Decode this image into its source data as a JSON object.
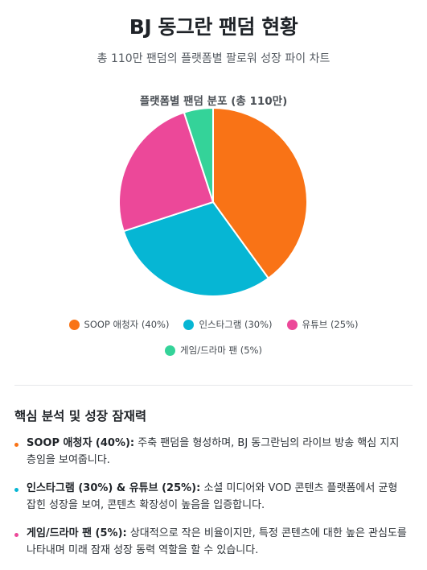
{
  "header": {
    "title": "BJ 동그란 팬덤 현황",
    "subtitle": "총 110만 팬덤의 플랫폼별 팔로워 성장 파이 차트"
  },
  "chart_data": {
    "type": "pie",
    "title": "플랫폼별 팬덤 분포 (총 110만)",
    "categories": [
      "SOOP 애청자",
      "인스타그램",
      "유튜브",
      "게임/드라마 팬"
    ],
    "values": [
      40,
      30,
      25,
      5
    ],
    "legend_labels": [
      "SOOP 애청자 (40%)",
      "인스타그램 (30%)",
      "유튜브 (25%)",
      "게임/드라마 팬 (5%)"
    ],
    "colors": [
      "#f97316",
      "#06b6d4",
      "#ec4899",
      "#34d399"
    ],
    "legend_position": "bottom"
  },
  "analysis": {
    "heading": "핵심 분석 및 성장 잠재력",
    "items": [
      {
        "label": "SOOP 애청자 (40%):",
        "text": " 주축 팬덤을 형성하며, BJ 동그란님의 라이브 방송 핵심 지지층임을 보여줍니다.",
        "color": "#f97316"
      },
      {
        "label": "인스타그램 (30%) & 유튜브 (25%):",
        "text": " 소셜 미디어와 VOD 콘텐츠 플랫폼에서 균형 잡힌 성장을 보여, 콘텐츠 확장성이 높음을 입증합니다.",
        "color": "#06b6d4"
      },
      {
        "label": "게임/드라마 팬 (5%):",
        "text": " 상대적으로 작은 비율이지만, 특정 콘텐츠에 대한 높은 관심도를 나타내며 미래 잠재 성장 동력 역할을 할 수 있습니다.",
        "color": "#ec4899"
      }
    ]
  }
}
